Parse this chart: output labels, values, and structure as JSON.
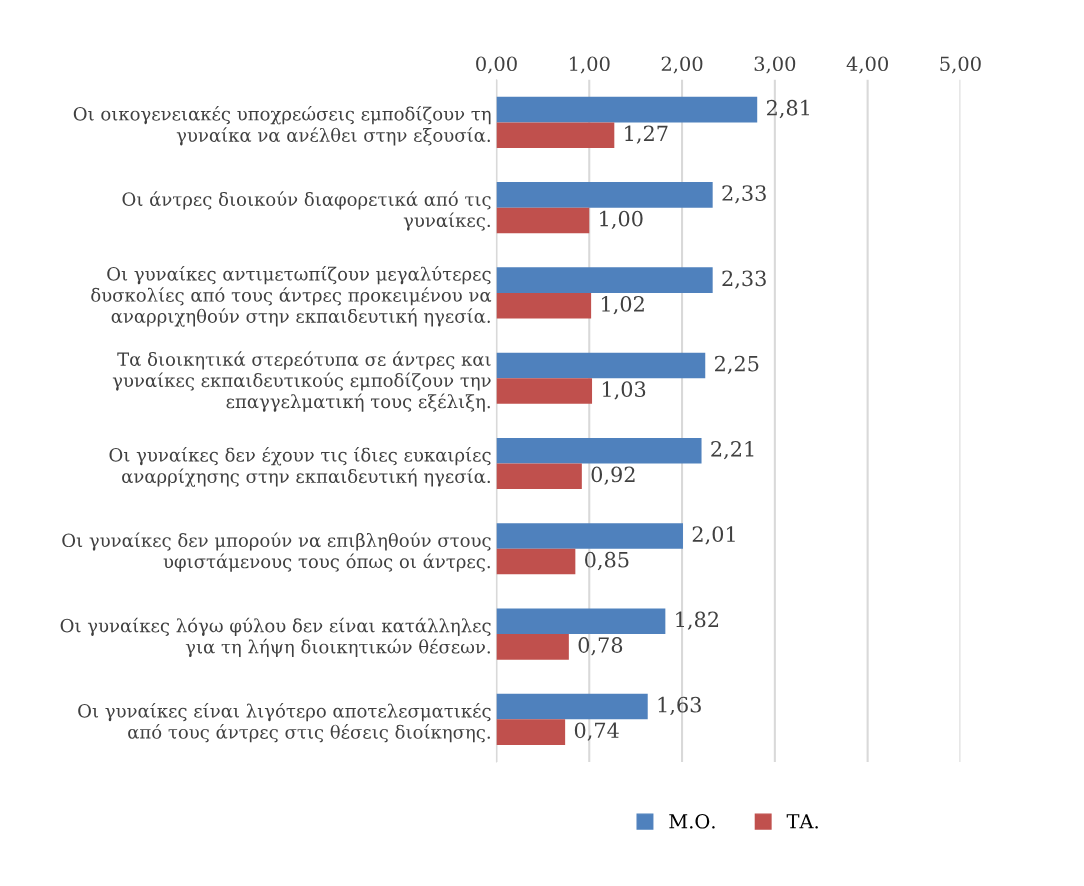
{
  "chart_data": {
    "type": "bar",
    "orientation": "horizontal",
    "categories": [
      "Οι οικογενειακές υποχρεώσεις εμποδίζουν τη γυναίκα να ανέλθει στην εξουσία.",
      "Οι άντρες διοικούν διαφορετικά από τις γυναίκες.",
      "Οι γυναίκες αντιμετωπίζουν μεγαλύτερες δυσκολίες από τους άντρες προκειμένου να αναρριχηθούν στην εκπαιδευτική ηγεσία.",
      "Τα διοικητικά στερεότυπα σε άντρες και γυναίκες εκπαιδευτικούς εμποδίζουν την επαγγελματική τους εξέλιξη.",
      "Οι γυναίκες δεν έχουν τις ίδιες ευκαιρίες αναρρίχησης στην εκπαιδευτική ηγεσία.",
      "Οι γυναίκες δεν μπορούν να επιβληθούν στους υφιστάμενους τους όπως οι άντρες.",
      "Οι γυναίκες λόγω φύλου δεν είναι κατάλληλες για τη λήψη διοικητικών θέσεων.",
      "Οι γυναίκες είναι λιγότερο αποτελεσματικές από τους άντρες στις θέσεις διοίκησης."
    ],
    "series": [
      {
        "name": "Μ.Ο.",
        "color": "#4f81bd",
        "values": [
          2.81,
          2.33,
          2.33,
          2.25,
          2.21,
          2.01,
          1.82,
          1.63
        ],
        "value_labels": [
          "2,81",
          "2,33",
          "2,33",
          "2,25",
          "2,21",
          "2,01",
          "1,82",
          "1,63"
        ]
      },
      {
        "name": "ΤΑ.",
        "color": "#c0504d",
        "values": [
          1.27,
          1.0,
          1.02,
          1.03,
          0.92,
          0.85,
          0.78,
          0.74
        ],
        "value_labels": [
          "1,27",
          "1,00",
          "1,02",
          "1,03",
          "0,92",
          "0,85",
          "0,78",
          "0,74"
        ]
      }
    ],
    "xlim": [
      0,
      5
    ],
    "xticks": [
      {
        "value": 0,
        "label": "0,00"
      },
      {
        "value": 1,
        "label": "1,00"
      },
      {
        "value": 2,
        "label": "2,00"
      },
      {
        "value": 3,
        "label": "3,00"
      },
      {
        "value": 4,
        "label": "4,00"
      },
      {
        "value": 5,
        "label": "5,00"
      }
    ],
    "grid": "x",
    "legend": "bottom"
  }
}
